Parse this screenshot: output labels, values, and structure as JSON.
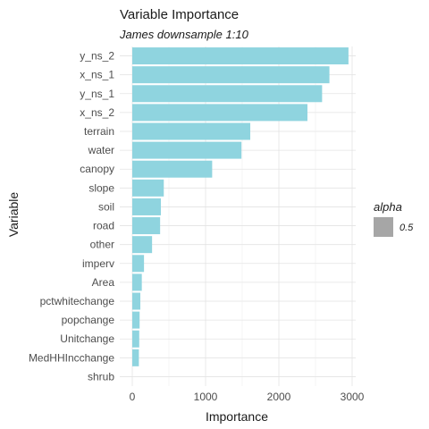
{
  "chart_data": {
    "type": "bar",
    "orientation": "horizontal",
    "title": "Variable Importance",
    "subtitle": "James downsample 1:10",
    "xlabel": "Importance",
    "ylabel": "Variable",
    "xlim": [
      0,
      3100
    ],
    "xticks": [
      0,
      1000,
      2000,
      3000
    ],
    "grid": true,
    "bar_color": "#8fd4df",
    "categories": [
      "y_ns_2",
      "x_ns_1",
      "y_ns_1",
      "x_ns_2",
      "terrain",
      "water",
      "canopy",
      "slope",
      "soil",
      "road",
      "other",
      "imperv",
      "Area",
      "pctwhitechange",
      "popchange",
      "Unitchange",
      "MedHHIncchange",
      "shrub"
    ],
    "values": [
      2950,
      2690,
      2590,
      2390,
      1610,
      1490,
      1090,
      430,
      390,
      380,
      270,
      160,
      130,
      110,
      100,
      95,
      90,
      0
    ],
    "legend": {
      "title": "alpha",
      "label": "0.5",
      "color": "#a6a6a6",
      "placement": "right"
    }
  }
}
